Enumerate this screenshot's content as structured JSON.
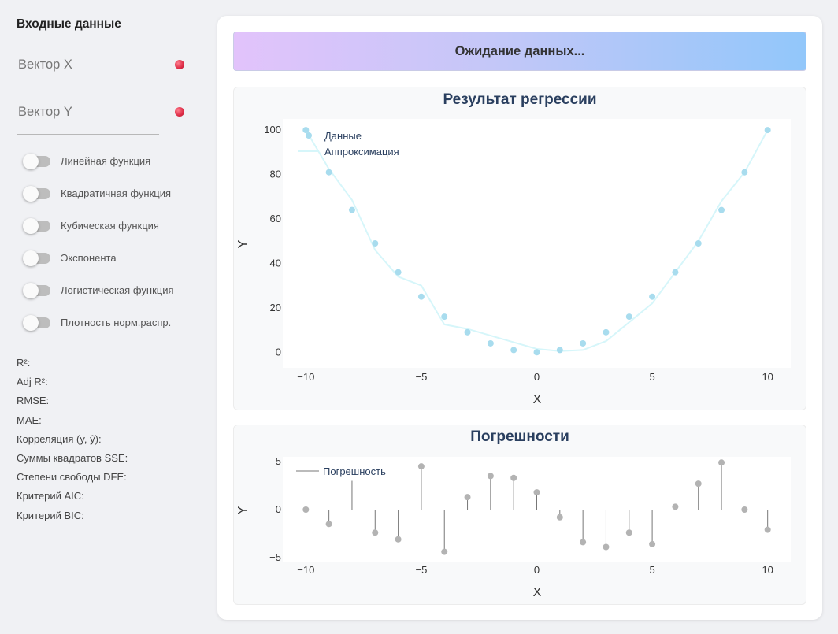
{
  "sidebar": {
    "title": "Входные данные",
    "vector_x": "Вектор X",
    "vector_y": "Вектор Y",
    "toggles": [
      {
        "label": "Линейная функция",
        "on": false
      },
      {
        "label": "Квадратичная функция",
        "on": false
      },
      {
        "label": "Кубическая функция",
        "on": false
      },
      {
        "label": "Экспонента",
        "on": false
      },
      {
        "label": "Логистическая функция",
        "on": false
      },
      {
        "label": "Плотность норм.распр.",
        "on": false
      }
    ],
    "stats": [
      "R²:",
      "Adj R²:",
      "RMSE:",
      "MAE:",
      "Корреляция (y, ŷ):",
      "Суммы квадратов SSE:",
      "Степени свободы DFE:",
      "Критерий AIC:",
      "Критерий BIC:"
    ]
  },
  "status": {
    "message": "Ожидание данных..."
  },
  "colors": {
    "status_dot": "#dc2b45",
    "points": "#a8dcee",
    "fit": "#d6f6fa",
    "residual_points": "#b3b3b3",
    "residual_stems": "#777777"
  },
  "chart_data": [
    {
      "type": "scatter",
      "title": "Результат регрессии",
      "xlabel": "X",
      "ylabel": "Y",
      "xlim": [
        -11,
        11
      ],
      "ylim": [
        -7,
        105
      ],
      "xticks": [
        -10,
        -5,
        0,
        5,
        10
      ],
      "yticks": [
        0,
        20,
        40,
        60,
        80,
        100
      ],
      "xtick_labels": [
        "−10",
        "−5",
        "0",
        "5",
        "10"
      ],
      "ytick_labels": [
        "0",
        "20",
        "40",
        "60",
        "80",
        "100"
      ],
      "legend": [
        "Данные",
        "Аппроксимация"
      ],
      "series": [
        {
          "name": "Данные",
          "mode": "markers",
          "x": [
            -10,
            -9,
            -8,
            -7,
            -6,
            -5,
            -4,
            -3,
            -2,
            -1,
            0,
            1,
            2,
            3,
            4,
            5,
            6,
            7,
            8,
            9,
            10
          ],
          "y": [
            100,
            81,
            64,
            49,
            36,
            25,
            16,
            9,
            4,
            1,
            0,
            1,
            4,
            9,
            16,
            25,
            36,
            49,
            64,
            81,
            100
          ]
        },
        {
          "name": "Аппроксимация",
          "mode": "lines",
          "x": [
            -10,
            -9,
            -8,
            -7,
            -6,
            -5,
            -4,
            -3,
            -2,
            -1,
            0,
            1,
            2,
            3,
            4,
            5,
            6,
            7,
            8,
            9,
            10
          ],
          "y": [
            100,
            82.5,
            68.5,
            46,
            34,
            30,
            12.5,
            10.5,
            7.5,
            4.5,
            1.5,
            0.5,
            1,
            5,
            13.5,
            22,
            36,
            50,
            68,
            81,
            100
          ]
        }
      ]
    },
    {
      "type": "scatter",
      "title": "Погрешности",
      "xlabel": "X",
      "ylabel": "Y",
      "xlim": [
        -11,
        11
      ],
      "ylim": [
        -5.5,
        5.5
      ],
      "xticks": [
        -10,
        -5,
        0,
        5,
        10
      ],
      "yticks": [
        -5,
        0,
        5
      ],
      "xtick_labels": [
        "−10",
        "−5",
        "0",
        "5",
        "10"
      ],
      "ytick_labels": [
        "−5",
        "0",
        "5"
      ],
      "legend": [
        "Погрешность"
      ],
      "x": [
        -10,
        -9,
        -8,
        -7,
        -6,
        -5,
        -4,
        -3,
        -2,
        -1,
        0,
        1,
        2,
        3,
        4,
        5,
        6,
        7,
        8,
        9,
        10
      ],
      "y": [
        0,
        -1.5,
        3,
        -2.4,
        -3.1,
        4.5,
        -4.4,
        1.3,
        3.5,
        3.3,
        1.8,
        -0.8,
        -3.4,
        -3.9,
        -2.4,
        -3.6,
        0.3,
        2.7,
        4.9,
        0,
        -2.1
      ],
      "markers": [
        true,
        true,
        false,
        true,
        true,
        true,
        true,
        true,
        true,
        true,
        true,
        true,
        true,
        true,
        true,
        true,
        true,
        true,
        true,
        true,
        true
      ]
    }
  ]
}
